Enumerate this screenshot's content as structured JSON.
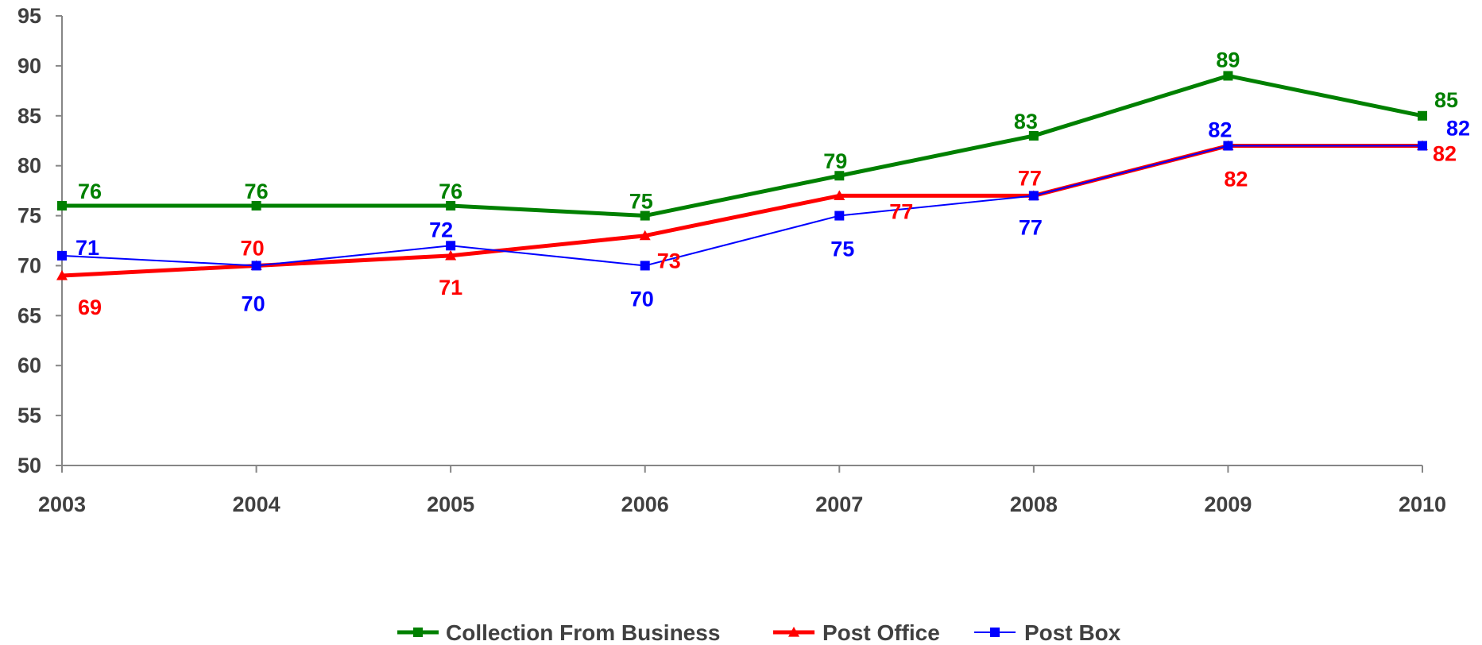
{
  "chart_data": {
    "type": "line",
    "categories": [
      "2003",
      "2004",
      "2005",
      "2006",
      "2007",
      "2008",
      "2009",
      "2010"
    ],
    "ylim": [
      50,
      95
    ],
    "yticks": [
      "50",
      "55",
      "60",
      "65",
      "70",
      "75",
      "80",
      "85",
      "90",
      "95"
    ],
    "grid": false,
    "legend_position": "bottom",
    "series": [
      {
        "name": "Collection From Business",
        "color": "#008000",
        "marker": "square",
        "values": [
          76,
          76,
          76,
          75,
          79,
          83,
          89,
          85
        ]
      },
      {
        "name": "Post Office",
        "color": "#ff0000",
        "marker": "triangle",
        "values": [
          69,
          70,
          71,
          73,
          77,
          77,
          82,
          82
        ]
      },
      {
        "name": "Post Box",
        "color": "#0000ff",
        "marker": "square",
        "values": [
          71,
          70,
          72,
          70,
          75,
          77,
          82,
          82
        ]
      }
    ]
  }
}
